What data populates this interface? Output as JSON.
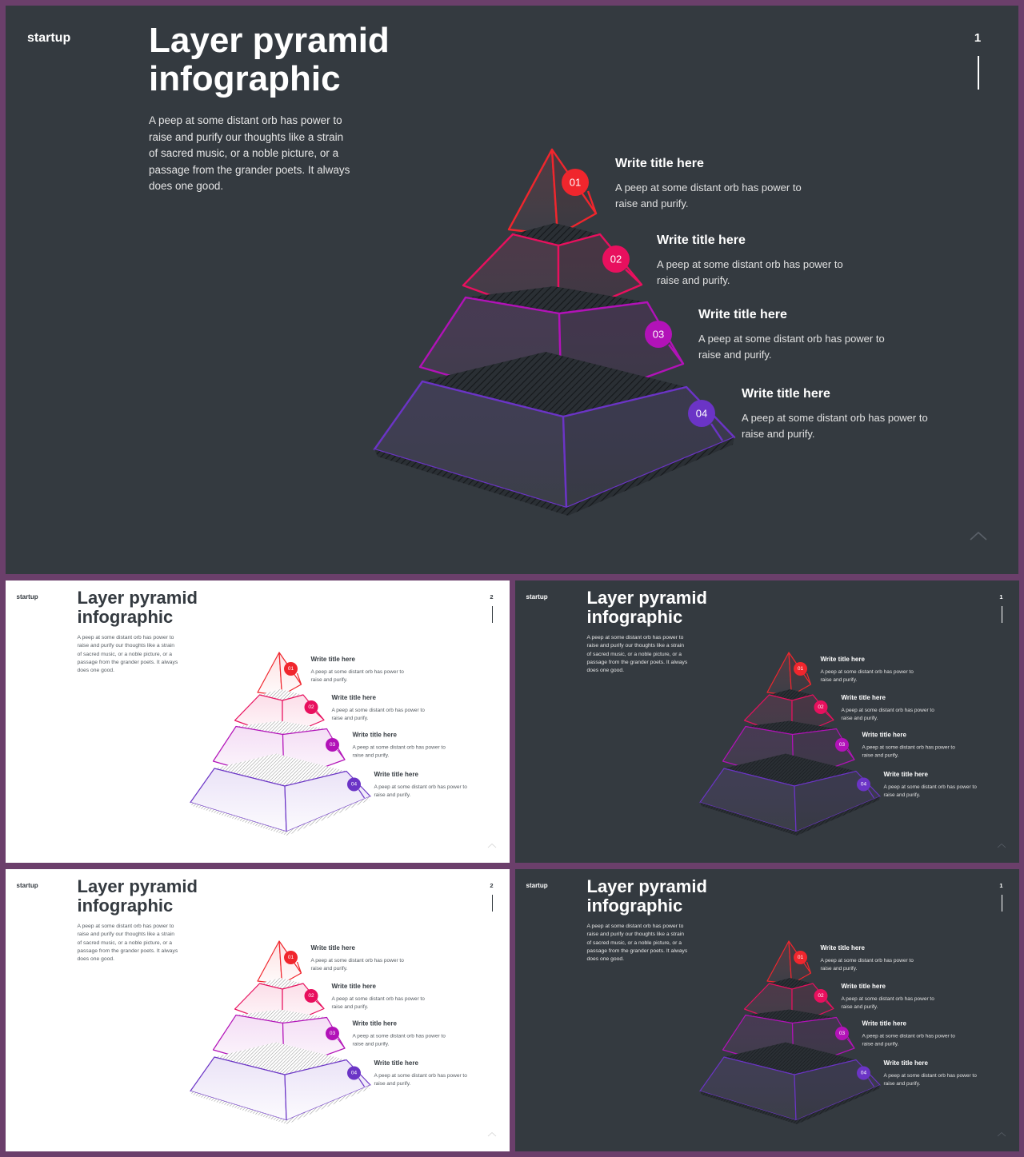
{
  "slides": [
    {
      "theme": "dark",
      "brand": "startup",
      "title_lines": [
        "Layer pyramid",
        "infographic"
      ],
      "description_lines": [
        "A peep at some distant orb has power to",
        "raise and purify our thoughts like a strain",
        "of sacred music, or a noble picture, or a",
        "passage from the grander poets. It always",
        "does one good."
      ],
      "page_number": "1"
    },
    {
      "theme": "light",
      "brand": "startup",
      "title_lines": [
        "Layer pyramid",
        "infographic"
      ],
      "description_lines": [
        "A peep at some distant orb has power to",
        "raise and purify our thoughts like a strain",
        "of sacred music, or a noble picture, or a",
        "passage from the grander poets. It always",
        "does one good."
      ],
      "page_number": "2"
    },
    {
      "theme": "dark",
      "brand": "startup",
      "title_lines": [
        "Layer pyramid",
        "infographic"
      ],
      "description_lines": [
        "A peep at some distant orb has power to",
        "raise and purify our thoughts like a strain",
        "of sacred music, or a noble picture, or a",
        "passage from the grander poets. It always",
        "does one good."
      ],
      "page_number": "1"
    },
    {
      "theme": "light",
      "brand": "startup",
      "title_lines": [
        "Layer pyramid",
        "infographic"
      ],
      "description_lines": [
        "A peep at some distant orb has power to",
        "raise and purify our thoughts like a strain",
        "of sacred music, or a noble picture, or a",
        "passage from the grander poets. It always",
        "does one good."
      ],
      "page_number": "2"
    },
    {
      "theme": "dark",
      "brand": "startup",
      "title_lines": [
        "Layer pyramid",
        "infographic"
      ],
      "description_lines": [
        "A peep at some distant orb has power to",
        "raise and purify our thoughts like a strain",
        "of sacred music, or a noble picture, or a",
        "passage from the grander poets. It always",
        "does one good."
      ],
      "page_number": "1"
    }
  ],
  "steps": [
    {
      "number": "01",
      "title": "Write title here",
      "desc_lines": [
        "A peep at some distant orb has power to",
        "raise and purify."
      ],
      "color": "#f0262d"
    },
    {
      "number": "02",
      "title": "Write title here",
      "desc_lines": [
        "A peep at some distant orb has power to",
        "raise and purify."
      ],
      "color": "#e8105e"
    },
    {
      "number": "03",
      "title": "Write title here",
      "desc_lines": [
        "A peep at some distant orb has power to",
        "raise and purify."
      ],
      "color": "#b212b8"
    },
    {
      "number": "04",
      "title": "Write title here",
      "desc_lines": [
        "A peep at some distant orb has power to",
        "raise and purify."
      ],
      "color": "#6b34c6"
    }
  ],
  "icons": {
    "scroll_up": "chevron-up-icon"
  }
}
